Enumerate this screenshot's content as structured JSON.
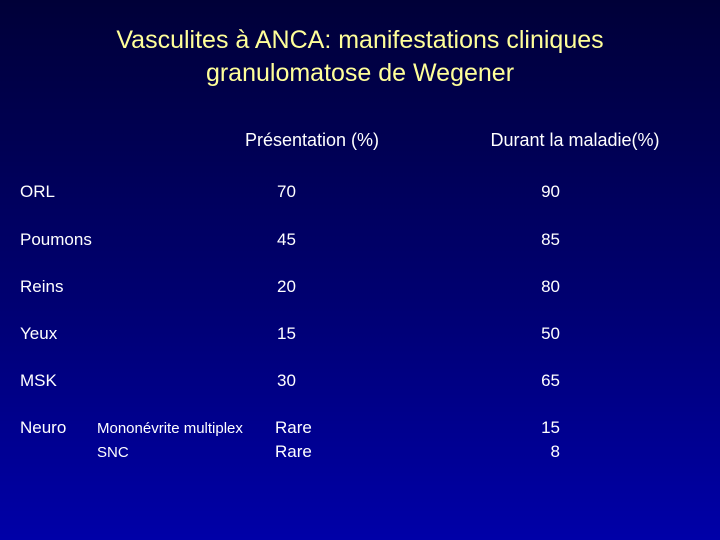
{
  "title": [
    "Vasculites à ANCA: manifestations cliniques",
    "granulomatose de Wegener"
  ],
  "table": {
    "columns": [
      "Présentation (%)",
      "Durant la maladie(%)"
    ],
    "rows": [
      [
        "ORL",
        "70",
        "90"
      ],
      [
        "Poumons",
        "45",
        "85"
      ],
      [
        "Reins",
        "20",
        "80"
      ],
      [
        "Yeux",
        "15",
        "50"
      ],
      [
        "MSK",
        "30",
        "65"
      ]
    ],
    "neuro": {
      "label": "Neuro",
      "sub": [
        [
          "Mononévrite multiplex",
          "Rare",
          "15"
        ],
        [
          "SNC",
          "Rare",
          "8"
        ]
      ]
    }
  }
}
